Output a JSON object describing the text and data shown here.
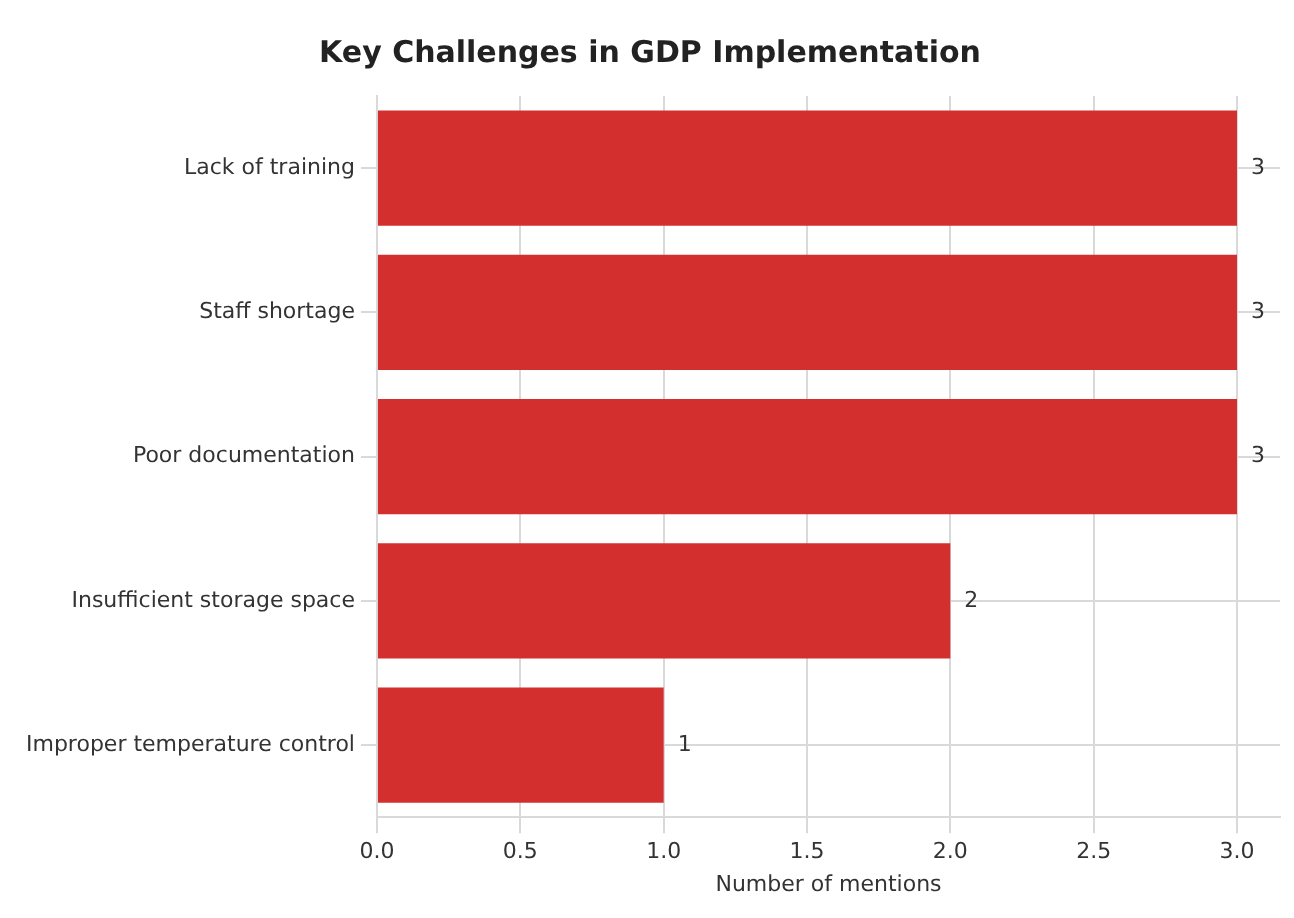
{
  "chart_data": {
    "type": "bar",
    "orientation": "horizontal",
    "title": "Key Challenges in GDP Implementation",
    "xlabel": "Number of mentions",
    "categories": [
      "Lack of training",
      "Staff shortage",
      "Poor documentation",
      "Insufficient storage space",
      "Improper temperature control"
    ],
    "values": [
      3,
      3,
      3,
      2,
      1
    ],
    "color": "#d32f2f",
    "xlim": [
      0,
      3.15
    ],
    "xticks": [
      {
        "value": 0,
        "label": "0.0"
      },
      {
        "value": 0.5,
        "label": "0.5"
      },
      {
        "value": 1,
        "label": "1.0"
      },
      {
        "value": 1.5,
        "label": "1.5"
      },
      {
        "value": 2,
        "label": "2.0"
      },
      {
        "value": 2.5,
        "label": "2.5"
      },
      {
        "value": 3,
        "label": "3.0"
      }
    ],
    "grid": true,
    "data_labels": true
  }
}
